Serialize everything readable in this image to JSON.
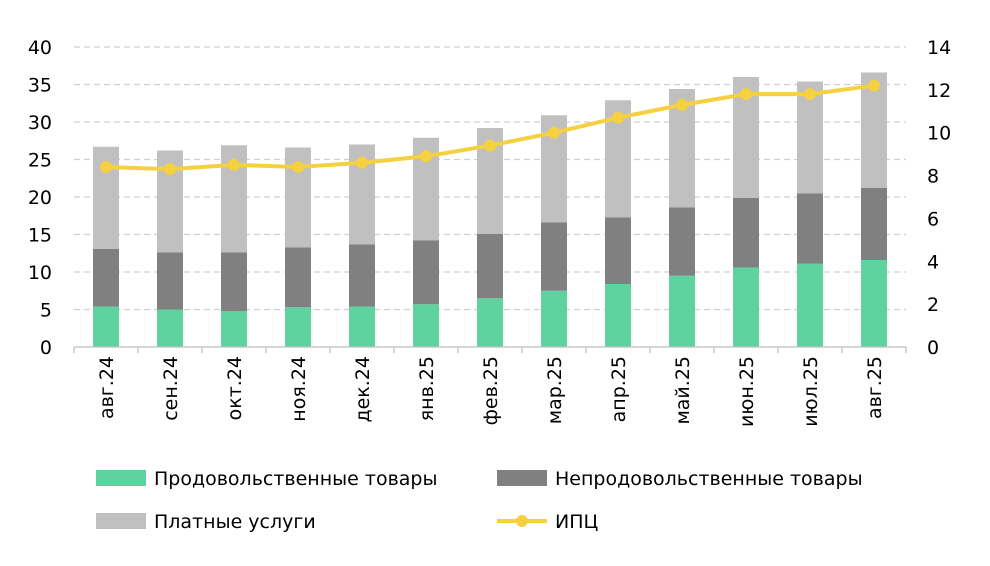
{
  "chart_data": {
    "type": "bar",
    "stacked": true,
    "categories": [
      "авг.24",
      "сен.24",
      "окт.24",
      "ноя.24",
      "дек.24",
      "янв.25",
      "фев.25",
      "мар.25",
      "апр.25",
      "май.25",
      "июн.25",
      "июл.25",
      "авг.25"
    ],
    "series": [
      {
        "name": "Продовольственные товары",
        "type": "bar",
        "axis": "left",
        "color": "#5fd39f",
        "values": [
          5.4,
          5.0,
          4.8,
          5.3,
          5.4,
          5.7,
          6.5,
          7.5,
          8.4,
          9.5,
          10.6,
          11.1,
          11.6
        ]
      },
      {
        "name": "Непродовольственные товары",
        "type": "bar",
        "axis": "left",
        "color": "#808080",
        "values": [
          7.7,
          7.6,
          7.8,
          8.0,
          8.3,
          8.5,
          8.6,
          9.1,
          8.9,
          9.1,
          9.3,
          9.4,
          9.6
        ]
      },
      {
        "name": "Платные услуги",
        "type": "bar",
        "axis": "left",
        "color": "#c0c0c0",
        "values": [
          13.6,
          13.6,
          14.3,
          13.3,
          13.3,
          13.7,
          14.1,
          14.3,
          15.6,
          15.8,
          16.1,
          14.9,
          15.4
        ]
      },
      {
        "name": "ИПЦ",
        "type": "line",
        "axis": "right",
        "color": "#f5d040",
        "values": [
          8.4,
          8.3,
          8.5,
          8.4,
          8.6,
          8.9,
          9.4,
          10.0,
          10.7,
          11.3,
          11.8,
          11.8,
          12.2
        ]
      }
    ],
    "y_left": {
      "min": 0,
      "max": 40,
      "ticks": [
        "0",
        "5",
        "10",
        "15",
        "20",
        "25",
        "30",
        "35",
        "40"
      ]
    },
    "y_right": {
      "min": 0,
      "max": 14,
      "ticks": [
        "0",
        "2",
        "4",
        "6",
        "8",
        "10",
        "12",
        "14"
      ]
    },
    "grid": true,
    "legend_position": "bottom"
  }
}
